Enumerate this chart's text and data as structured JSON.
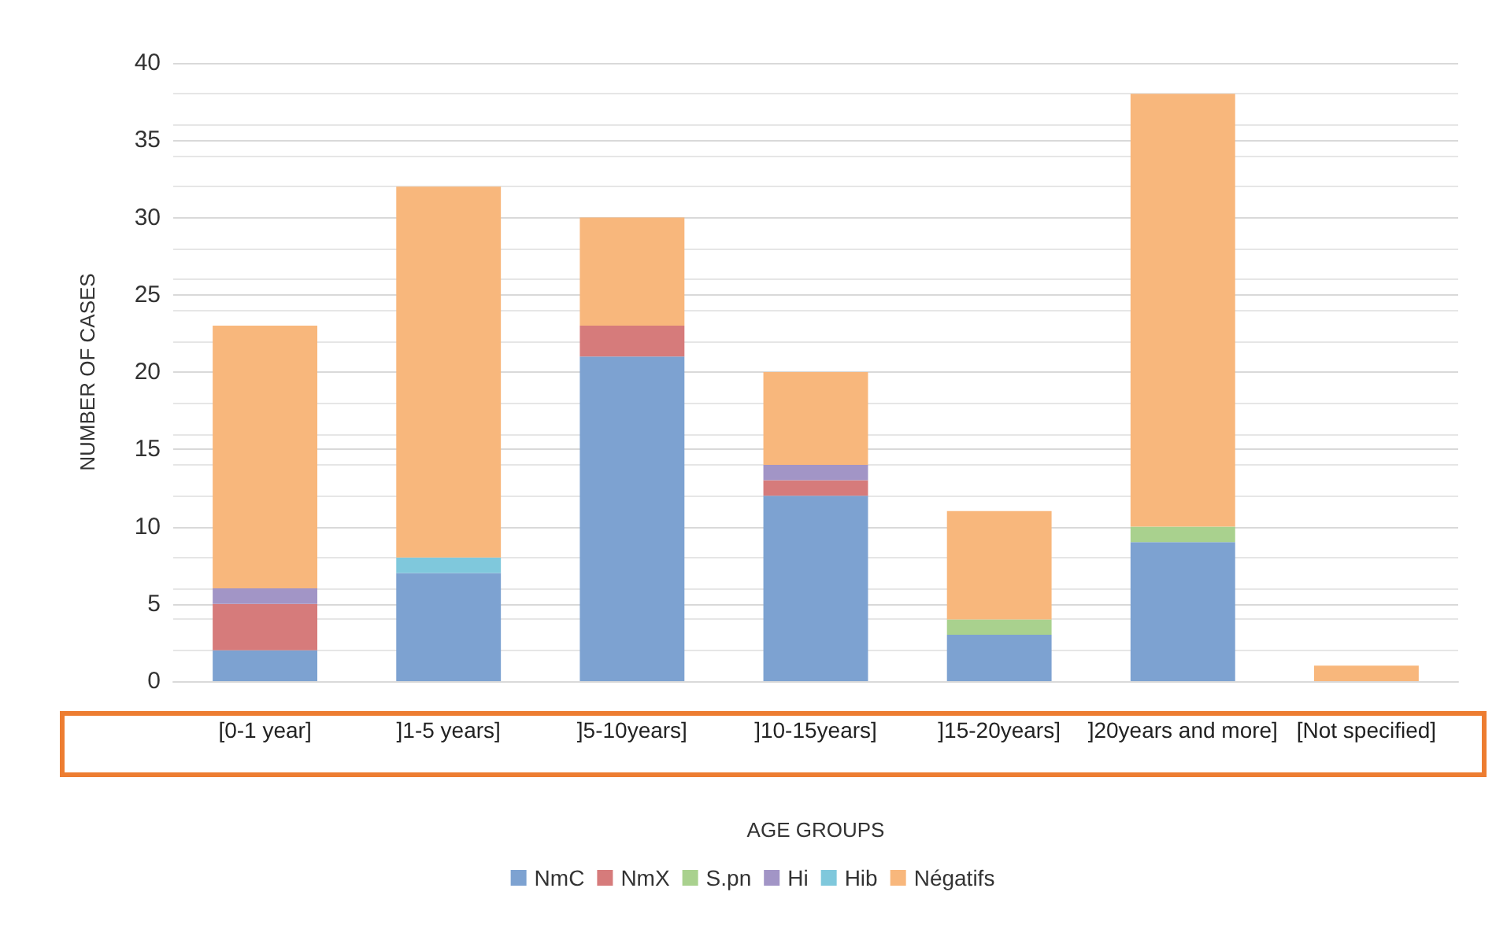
{
  "chart_data": {
    "type": "bar",
    "stacked": true,
    "xlabel": "AGE GROUPS",
    "ylabel": "NUMBER OF CASES",
    "categories": [
      "[0-1 year]",
      "]1-5 years]",
      "]5-10years]",
      "]10-15years]",
      "]15-20years]",
      "]20years and more]",
      "[Not specified]"
    ],
    "series": [
      {
        "name": "NmC",
        "color": "#7da2d1",
        "values": [
          2,
          7,
          21,
          12,
          3,
          9,
          0
        ]
      },
      {
        "name": "NmX",
        "color": "#d67b7b",
        "values": [
          3,
          0,
          2,
          1,
          0,
          0,
          0
        ]
      },
      {
        "name": "S.pn",
        "color": "#a9d18e",
        "values": [
          0,
          0,
          0,
          0,
          1,
          1,
          0
        ]
      },
      {
        "name": "Hi",
        "color": "#a295c6",
        "values": [
          1,
          0,
          0,
          1,
          0,
          0,
          0
        ]
      },
      {
        "name": "Hib",
        "color": "#7fc8dc",
        "values": [
          0,
          1,
          0,
          0,
          0,
          0,
          0
        ]
      },
      {
        "name": "Négatifs",
        "color": "#f8b77c",
        "values": [
          17,
          24,
          7,
          6,
          7,
          28,
          1
        ]
      }
    ],
    "ylim": [
      0,
      40
    ],
    "yticks": [
      0,
      5,
      10,
      15,
      20,
      25,
      30,
      35,
      40
    ],
    "grid": "y",
    "legend": "bottom"
  }
}
